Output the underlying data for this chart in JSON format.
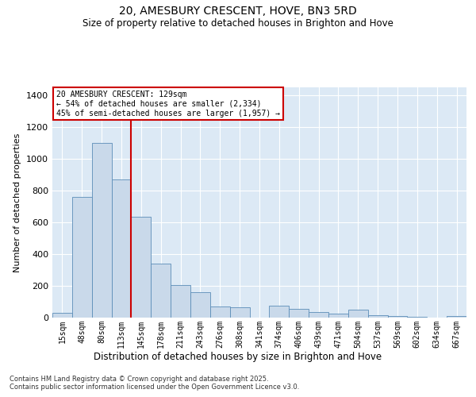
{
  "title1": "20, AMESBURY CRESCENT, HOVE, BN3 5RD",
  "title2": "Size of property relative to detached houses in Brighton and Hove",
  "xlabel": "Distribution of detached houses by size in Brighton and Hove",
  "ylabel": "Number of detached properties",
  "categories": [
    "15sqm",
    "48sqm",
    "80sqm",
    "113sqm",
    "145sqm",
    "178sqm",
    "211sqm",
    "243sqm",
    "276sqm",
    "308sqm",
    "341sqm",
    "374sqm",
    "406sqm",
    "439sqm",
    "471sqm",
    "504sqm",
    "537sqm",
    "569sqm",
    "602sqm",
    "634sqm",
    "667sqm"
  ],
  "values": [
    30,
    760,
    1100,
    870,
    635,
    340,
    205,
    160,
    70,
    65,
    2,
    75,
    55,
    35,
    25,
    50,
    15,
    10,
    5,
    2,
    10
  ],
  "bar_color": "#c9d9ea",
  "bar_edge_color": "#5b8db8",
  "vline_color": "#cc0000",
  "annotation_text": "20 AMESBURY CRESCENT: 129sqm\n← 54% of detached houses are smaller (2,334)\n45% of semi-detached houses are larger (1,957) →",
  "annotation_box_color": "#ffffff",
  "annotation_box_edge": "#cc0000",
  "ylim": [
    0,
    1450
  ],
  "yticks": [
    0,
    200,
    400,
    600,
    800,
    1000,
    1200,
    1400
  ],
  "background_color": "#dce9f5",
  "grid_color": "#ffffff",
  "footer1": "Contains HM Land Registry data © Crown copyright and database right 2025.",
  "footer2": "Contains public sector information licensed under the Open Government Licence v3.0."
}
